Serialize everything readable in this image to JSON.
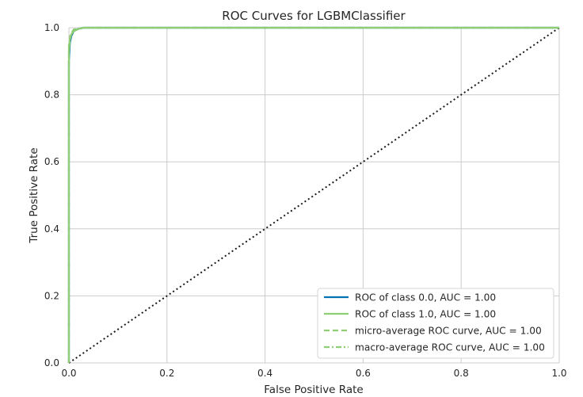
{
  "chart_data": {
    "type": "line",
    "title": "ROC Curves for LGBMClassifier",
    "xlabel": "False Positive Rate",
    "ylabel": "True Positive Rate",
    "xlim": [
      0,
      1
    ],
    "ylim": [
      0,
      1
    ],
    "xticks": [
      "0.0",
      "0.2",
      "0.4",
      "0.6",
      "0.8",
      "1.0"
    ],
    "yticks": [
      "0.0",
      "0.2",
      "0.4",
      "0.6",
      "0.8",
      "1.0"
    ],
    "grid": true,
    "legend_position": "lower-right",
    "series": [
      {
        "name": "ROC of class 0.0, AUC = 1.00",
        "color": "#0173b2",
        "style": "solid",
        "x": [
          0.0,
          0.0,
          0.002,
          0.005,
          0.01,
          0.02,
          0.03,
          0.05,
          1.0
        ],
        "y": [
          0.0,
          0.9,
          0.955,
          0.975,
          0.99,
          0.997,
          1.0,
          1.0,
          1.0
        ]
      },
      {
        "name": "ROC of class 1.0, AUC = 1.00",
        "color": "#8fce72",
        "style": "solid",
        "x": [
          0.0,
          0.0,
          0.002,
          0.005,
          0.01,
          0.02,
          0.03,
          0.05,
          1.0
        ],
        "y": [
          0.0,
          0.93,
          0.965,
          0.98,
          0.99,
          0.997,
          1.0,
          1.0,
          1.0
        ]
      },
      {
        "name": "micro-average ROC curve, AUC = 1.00",
        "color": "#8fce72",
        "style": "dashed",
        "x": [
          0.0,
          0.0,
          0.003,
          0.01,
          0.03,
          1.0
        ],
        "y": [
          0.0,
          0.95,
          0.98,
          0.995,
          1.0,
          1.0
        ]
      },
      {
        "name": "macro-average ROC curve, AUC = 1.00",
        "color": "#8fce72",
        "style": "dashdot",
        "x": [
          0.0,
          0.0,
          0.003,
          0.01,
          0.03,
          1.0
        ],
        "y": [
          0.0,
          0.94,
          0.975,
          0.993,
          1.0,
          1.0
        ]
      },
      {
        "name": "",
        "color": "#1a1a1a",
        "style": "dotted",
        "x": [
          0,
          1
        ],
        "y": [
          0,
          1
        ]
      }
    ]
  }
}
